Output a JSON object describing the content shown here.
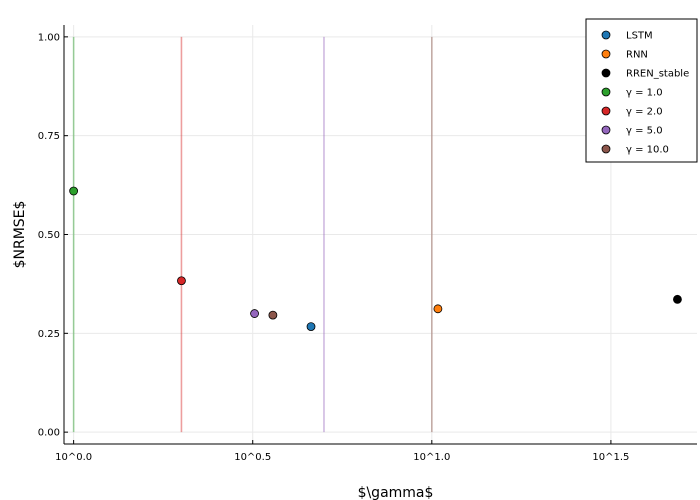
{
  "chart_data": {
    "type": "scatter",
    "xlabel": "$\\gamma$",
    "ylabel": "$NRMSE$",
    "x_scale": "log10",
    "xlim": [
      0.94,
      55.0
    ],
    "ylim": [
      -0.03,
      1.03
    ],
    "grid": true,
    "legend_position": "top-right",
    "x_ticks": [
      {
        "value": 1.0,
        "label": "10^0.0"
      },
      {
        "value": 3.1623,
        "label": "10^0.5"
      },
      {
        "value": 10.0,
        "label": "10^1.0"
      },
      {
        "value": 31.623,
        "label": "10^1.5"
      }
    ],
    "y_ticks": [
      {
        "value": 0.0,
        "label": "0.00"
      },
      {
        "value": 0.25,
        "label": "0.25"
      },
      {
        "value": 0.5,
        "label": "0.50"
      },
      {
        "value": 0.75,
        "label": "0.75"
      },
      {
        "value": 1.0,
        "label": "1.00"
      }
    ],
    "series": [
      {
        "name": "LSTM",
        "color": "#1f77b4",
        "points": [
          [
            4.6,
            0.267
          ]
        ]
      },
      {
        "name": "RNN",
        "color": "#ff7f0e",
        "points": [
          [
            10.4,
            0.312
          ]
        ]
      },
      {
        "name": "RREN_stable",
        "color": "#000000",
        "points": [
          [
            48.5,
            0.336
          ]
        ]
      },
      {
        "name": "γ = 1.0",
        "color": "#2ca02c",
        "points": [
          [
            1.0,
            0.61
          ]
        ],
        "vline": 1.0
      },
      {
        "name": "γ = 2.0",
        "color": "#d62728",
        "points": [
          [
            2.0,
            0.383
          ]
        ],
        "vline": 2.0
      },
      {
        "name": "γ = 5.0",
        "color": "#9467bd",
        "points": [
          [
            3.2,
            0.3
          ]
        ],
        "vline": 5.0
      },
      {
        "name": "γ = 10.0",
        "color": "#8c564b",
        "points": [
          [
            3.6,
            0.296
          ]
        ],
        "vline": 10.0
      }
    ]
  }
}
